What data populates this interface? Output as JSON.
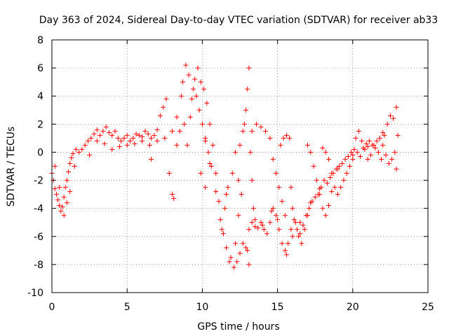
{
  "chart_data": {
    "type": "scatter",
    "title": "Day 363 of 2024, Sidereal Day-to-day VTEC variation (SDTVAR) for receiver ab33",
    "xlabel": "GPS time / hours",
    "ylabel": "SDTVAR / TECUs",
    "xlim": [
      0,
      25
    ],
    "ylim": [
      -10,
      8
    ],
    "x_ticks": [
      0,
      5,
      10,
      15,
      20,
      25
    ],
    "x_tick_labels": [
      "0",
      "5",
      "10",
      "15",
      "20",
      "25"
    ],
    "y_ticks": [
      -10,
      -8,
      -6,
      -4,
      -2,
      0,
      2,
      4,
      6,
      8
    ],
    "y_tick_labels": [
      "-10",
      "-8",
      "-6",
      "-4",
      "-2",
      "0",
      "2",
      "4",
      "6",
      "8"
    ],
    "grid": true,
    "marker": "+",
    "series_color": "#ff0000",
    "series": [
      {
        "name": "ab33",
        "points": [
          [
            0.0,
            -1.5
          ],
          [
            0.1,
            -2.0
          ],
          [
            0.2,
            -2.6
          ],
          [
            0.3,
            -3.0
          ],
          [
            0.4,
            -3.4
          ],
          [
            0.5,
            -3.8
          ],
          [
            0.6,
            -4.2
          ],
          [
            0.7,
            -3.9
          ],
          [
            0.8,
            -3.2
          ],
          [
            0.9,
            -2.5
          ],
          [
            1.0,
            -2.0
          ],
          [
            1.1,
            -1.4
          ],
          [
            1.2,
            -0.8
          ],
          [
            1.3,
            -0.4
          ],
          [
            1.4,
            -0.1
          ],
          [
            1.6,
            0.2
          ],
          [
            1.8,
            0.0
          ],
          [
            2.0,
            0.2
          ],
          [
            2.2,
            0.5
          ],
          [
            2.4,
            0.8
          ],
          [
            2.6,
            1.0
          ],
          [
            2.8,
            1.3
          ],
          [
            3.0,
            1.6
          ],
          [
            3.2,
            1.2
          ],
          [
            3.4,
            1.5
          ],
          [
            3.6,
            1.8
          ],
          [
            3.8,
            1.4
          ],
          [
            4.0,
            1.2
          ],
          [
            4.2,
            1.5
          ],
          [
            4.4,
            1.0
          ],
          [
            4.6,
            0.8
          ],
          [
            4.8,
            1.0
          ],
          [
            5.0,
            1.2
          ],
          [
            5.2,
            0.8
          ],
          [
            5.4,
            1.0
          ],
          [
            5.6,
            1.3
          ],
          [
            5.8,
            1.2
          ],
          [
            6.0,
            1.1
          ],
          [
            6.2,
            1.5
          ],
          [
            6.4,
            1.3
          ],
          [
            6.6,
            1.0
          ],
          [
            6.8,
            1.2
          ],
          [
            7.0,
            1.6
          ],
          [
            7.2,
            2.6
          ],
          [
            7.4,
            3.2
          ],
          [
            7.6,
            3.8
          ],
          [
            7.8,
            -1.5
          ],
          [
            8.0,
            -3.0
          ],
          [
            8.1,
            -3.3
          ],
          [
            8.3,
            0.5
          ],
          [
            8.5,
            1.5
          ],
          [
            8.7,
            5.0
          ],
          [
            8.9,
            6.2
          ],
          [
            9.1,
            5.5
          ],
          [
            9.3,
            3.8
          ],
          [
            9.5,
            5.2
          ],
          [
            9.7,
            6.0
          ],
          [
            9.9,
            5.0
          ],
          [
            10.1,
            4.5
          ],
          [
            10.3,
            3.5
          ],
          [
            10.5,
            2.0
          ],
          [
            10.7,
            0.5
          ],
          [
            10.9,
            -1.5
          ],
          [
            11.1,
            -3.5
          ],
          [
            11.3,
            -5.5
          ],
          [
            11.5,
            -4.0
          ],
          [
            11.7,
            -2.5
          ],
          [
            11.9,
            -7.5
          ],
          [
            12.1,
            -8.2
          ],
          [
            12.3,
            -7.8
          ],
          [
            12.5,
            -7.2
          ],
          [
            12.7,
            -6.5
          ],
          [
            12.9,
            -6.8
          ],
          [
            13.1,
            -5.5
          ],
          [
            13.3,
            -5.0
          ],
          [
            13.5,
            -5.3
          ],
          [
            13.7,
            -5.4
          ],
          [
            13.9,
            -5.0
          ],
          [
            14.1,
            -5.5
          ],
          [
            14.3,
            -5.8
          ],
          [
            14.5,
            -5.0
          ],
          [
            14.7,
            -4.0
          ],
          [
            14.9,
            -4.5
          ],
          [
            15.1,
            -5.5
          ],
          [
            15.3,
            -6.5
          ],
          [
            15.5,
            -7.0
          ],
          [
            15.7,
            -6.5
          ],
          [
            15.9,
            -5.5
          ],
          [
            16.1,
            -4.8
          ],
          [
            16.3,
            -5.5
          ],
          [
            16.5,
            -5.8
          ],
          [
            16.7,
            -5.2
          ],
          [
            16.9,
            -4.5
          ],
          [
            17.1,
            -4.0
          ],
          [
            17.3,
            -3.5
          ],
          [
            17.5,
            -3.2
          ],
          [
            17.7,
            -3.0
          ],
          [
            17.9,
            -2.5
          ],
          [
            18.1,
            -2.0
          ],
          [
            18.3,
            -2.2
          ],
          [
            18.5,
            -1.8
          ],
          [
            18.7,
            -1.5
          ],
          [
            18.9,
            -1.2
          ],
          [
            19.1,
            -1.0
          ],
          [
            19.3,
            -0.8
          ],
          [
            19.5,
            -0.5
          ],
          [
            19.7,
            -0.3
          ],
          [
            19.9,
            0.0
          ],
          [
            20.1,
            0.2
          ],
          [
            20.3,
            0.0
          ],
          [
            20.5,
            -0.3
          ],
          [
            20.7,
            0.3
          ],
          [
            20.9,
            0.6
          ],
          [
            21.1,
            0.8
          ],
          [
            21.3,
            0.5
          ],
          [
            21.5,
            0.3
          ],
          [
            21.7,
            0.0
          ],
          [
            21.9,
            -0.5
          ],
          [
            22.1,
            1.2
          ],
          [
            22.3,
            2.0
          ],
          [
            22.5,
            2.6
          ],
          [
            22.7,
            2.4
          ],
          [
            22.9,
            3.2
          ],
          [
            0.2,
            -1.0
          ],
          [
            0.5,
            -2.5
          ],
          [
            0.8,
            -4.5
          ],
          [
            1.0,
            -3.6
          ],
          [
            1.2,
            -2.8
          ],
          [
            1.5,
            -1.0
          ],
          [
            2.5,
            -0.2
          ],
          [
            3.0,
            0.8
          ],
          [
            3.5,
            0.6
          ],
          [
            4.0,
            0.2
          ],
          [
            4.5,
            0.4
          ],
          [
            5.0,
            0.5
          ],
          [
            5.5,
            0.6
          ],
          [
            6.0,
            0.8
          ],
          [
            6.5,
            0.5
          ],
          [
            6.6,
            -0.5
          ],
          [
            7.0,
            0.8
          ],
          [
            7.5,
            1.0
          ],
          [
            8.0,
            1.5
          ],
          [
            8.3,
            2.5
          ],
          [
            8.6,
            4.0
          ],
          [
            8.8,
            2.0
          ],
          [
            9.0,
            0.5
          ],
          [
            9.2,
            2.5
          ],
          [
            9.4,
            4.5
          ],
          [
            9.6,
            4.0
          ],
          [
            9.8,
            3.0
          ],
          [
            10.0,
            2.0
          ],
          [
            10.2,
            1.0
          ],
          [
            10.4,
            0.0
          ],
          [
            10.6,
            -1.0
          ],
          [
            10.2,
            -2.5
          ],
          [
            9.9,
            -1.5
          ],
          [
            10.2,
            0.8
          ],
          [
            10.5,
            -0.8
          ],
          [
            10.9,
            -2.8
          ],
          [
            11.2,
            -4.8
          ],
          [
            11.4,
            -5.8
          ],
          [
            11.6,
            -6.8
          ],
          [
            11.8,
            -7.8
          ],
          [
            11.6,
            -3.0
          ],
          [
            12.0,
            -1.5
          ],
          [
            12.2,
            0.0
          ],
          [
            12.2,
            -6.5
          ],
          [
            12.4,
            -4.5
          ],
          [
            12.4,
            -2.0
          ],
          [
            12.5,
            0.5
          ],
          [
            12.6,
            -3.0
          ],
          [
            12.7,
            1.5
          ],
          [
            12.8,
            2.0
          ],
          [
            12.9,
            3.0
          ],
          [
            13.0,
            4.5
          ],
          [
            13.1,
            6.0
          ],
          [
            13.2,
            0.0
          ],
          [
            13.3,
            -2.0
          ],
          [
            13.4,
            -4.0
          ],
          [
            13.1,
            -8.0
          ],
          [
            13.0,
            -7.0
          ],
          [
            13.3,
            1.5
          ],
          [
            13.6,
            2.0
          ],
          [
            13.9,
            1.8
          ],
          [
            14.2,
            1.5
          ],
          [
            14.5,
            1.0
          ],
          [
            14.7,
            -0.5
          ],
          [
            14.9,
            -1.5
          ],
          [
            15.1,
            -2.5
          ],
          [
            15.3,
            -3.5
          ],
          [
            15.5,
            -4.5
          ],
          [
            15.2,
            0.5
          ],
          [
            15.4,
            1.0
          ],
          [
            15.6,
            1.2
          ],
          [
            15.8,
            1.0
          ],
          [
            15.9,
            -2.5
          ],
          [
            16.0,
            -4.0
          ],
          [
            16.2,
            -5.0
          ],
          [
            16.4,
            -6.0
          ],
          [
            16.6,
            -6.5
          ],
          [
            16.8,
            -5.5
          ],
          [
            17.0,
            -4.5
          ],
          [
            17.0,
            0.5
          ],
          [
            17.2,
            0.0
          ],
          [
            17.4,
            -1.0
          ],
          [
            17.6,
            -2.0
          ],
          [
            17.8,
            -3.0
          ],
          [
            18.0,
            -4.0
          ],
          [
            18.2,
            -4.5
          ],
          [
            18.4,
            -3.8
          ],
          [
            18.6,
            -2.8
          ],
          [
            18.0,
            0.3
          ],
          [
            18.2,
            0.0
          ],
          [
            18.4,
            -0.5
          ],
          [
            18.6,
            -1.5
          ],
          [
            18.8,
            -2.5
          ],
          [
            19.0,
            -3.0
          ],
          [
            19.2,
            -2.5
          ],
          [
            19.4,
            -2.0
          ],
          [
            19.6,
            -1.5
          ],
          [
            19.8,
            -1.0
          ],
          [
            20.0,
            -0.5
          ],
          [
            20.2,
            1.0
          ],
          [
            20.4,
            1.5
          ],
          [
            20.6,
            0.8
          ],
          [
            20.8,
            0.2
          ],
          [
            21.0,
            -0.5
          ],
          [
            21.2,
            -0.2
          ],
          [
            21.4,
            0.5
          ],
          [
            21.6,
            0.8
          ],
          [
            21.8,
            1.0
          ],
          [
            22.0,
            0.5
          ],
          [
            22.2,
            -0.2
          ],
          [
            22.4,
            -0.8
          ],
          [
            22.6,
            -0.5
          ],
          [
            22.8,
            0.0
          ],
          [
            22.9,
            -1.2
          ],
          [
            23.0,
            1.2
          ],
          [
            13.5,
            -4.8
          ],
          [
            14.0,
            -5.2
          ],
          [
            14.6,
            -4.2
          ],
          [
            15.0,
            -4.8
          ],
          [
            15.6,
            -7.3
          ],
          [
            16.0,
            -6.0
          ],
          [
            16.5,
            -5.0
          ],
          [
            17.2,
            -3.6
          ],
          [
            17.8,
            -2.6
          ],
          [
            19.0,
            -1.2
          ],
          [
            20.0,
            -0.2
          ],
          [
            21.0,
            0.4
          ],
          [
            22.0,
            1.4
          ]
        ]
      }
    ]
  }
}
